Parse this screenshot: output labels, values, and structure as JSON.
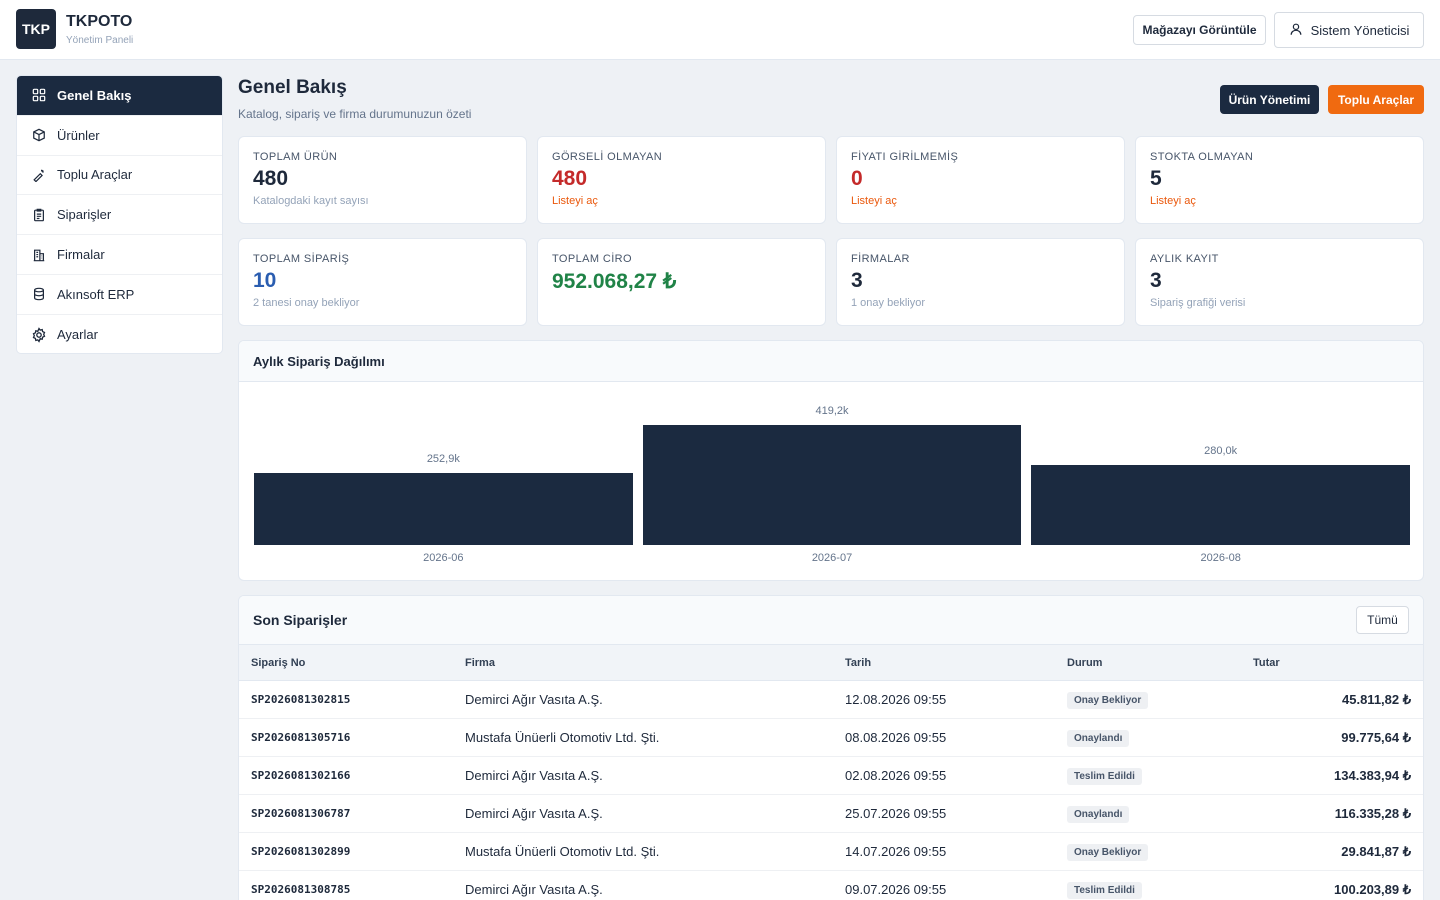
{
  "brand": {
    "logo": "TKP",
    "name": "TKPOTO",
    "subtitle": "Yönetim Paneli"
  },
  "topbar": {
    "store_button": "Mağazayı Görüntüle",
    "user_button": "Sistem Yöneticisi",
    "user_icon": "user-icon"
  },
  "sidebar": {
    "items": [
      {
        "label": "Genel Bakış",
        "icon": "grid-icon",
        "active": true
      },
      {
        "label": "Ürünler",
        "icon": "box-icon"
      },
      {
        "label": "Toplu Araçlar",
        "icon": "wand-icon"
      },
      {
        "label": "Siparişler",
        "icon": "clipboard-icon"
      },
      {
        "label": "Firmalar",
        "icon": "building-icon"
      },
      {
        "label": "Akınsoft ERP",
        "icon": "database-icon"
      },
      {
        "label": "Ayarlar",
        "icon": "gear-icon"
      }
    ]
  },
  "header": {
    "title": "Genel Bakış",
    "subtitle": "Katalog, sipariş ve firma durumunuzun özeti",
    "product_mgmt_button": "Ürün Yönetimi",
    "bulk_tools_button": "Toplu Araçlar"
  },
  "stats": [
    {
      "label": "TOPLAM ÜRÜN",
      "value": "480",
      "note": "Katalogdaki kayıt sayısı"
    },
    {
      "label": "GÖRSELİ OLMAYAN",
      "value": "480",
      "note": "Listeyi aç"
    },
    {
      "label": "FİYATI GİRİLMEMİŞ",
      "value": "0",
      "note": "Listeyi aç"
    },
    {
      "label": "STOKTA OLMAYAN",
      "value": "5",
      "note": "Listeyi aç"
    },
    {
      "label": "TOPLAM SİPARİŞ",
      "value": "10",
      "note": "2 tanesi onay bekliyor"
    },
    {
      "label": "TOPLAM CİRO",
      "value": "952.068,27 ₺",
      "note": ""
    },
    {
      "label": "FİRMALAR",
      "value": "3",
      "note": "1 onay bekliyor"
    },
    {
      "label": "AYLIK KAYIT",
      "value": "3",
      "note": "Sipariş grafiği verisi"
    }
  ],
  "colors": {
    "navy": "#1b2a40",
    "orange": "#f06a10",
    "red": "#c42a2a",
    "blue": "#2a5db0",
    "green": "#208347"
  },
  "chart": {
    "title": "Aylık Sipariş Dağılımı"
  },
  "chart_data": {
    "type": "bar",
    "categories": [
      "2026-06",
      "2026-07",
      "2026-08"
    ],
    "values": [
      252.9,
      419.2,
      280.0
    ],
    "value_labels": [
      "252,9k",
      "419,2k",
      "280,0k"
    ],
    "ylim": [
      0,
      419.2
    ]
  },
  "orders": {
    "title": "Son Siparişler",
    "all_button": "Tümü",
    "columns": [
      "Sipariş No",
      "Firma",
      "Tarih",
      "Durum",
      "Tutar"
    ],
    "rows": [
      {
        "no": "SP2026081302815",
        "firm": "Demirci Ağır Vasıta A.Ş.",
        "date": "12.08.2026 09:55",
        "status": "Onay Bekliyor",
        "amount": "45.811,82 ₺"
      },
      {
        "no": "SP2026081305716",
        "firm": "Mustafa Ünüerli Otomotiv Ltd. Şti.",
        "date": "08.08.2026 09:55",
        "status": "Onaylandı",
        "amount": "99.775,64 ₺"
      },
      {
        "no": "SP2026081302166",
        "firm": "Demirci Ağır Vasıta A.Ş.",
        "date": "02.08.2026 09:55",
        "status": "Teslim Edildi",
        "amount": "134.383,94 ₺"
      },
      {
        "no": "SP2026081306787",
        "firm": "Demirci Ağır Vasıta A.Ş.",
        "date": "25.07.2026 09:55",
        "status": "Onaylandı",
        "amount": "116.335,28 ₺"
      },
      {
        "no": "SP2026081302899",
        "firm": "Mustafa Ünüerli Otomotiv Ltd. Şti.",
        "date": "14.07.2026 09:55",
        "status": "Onay Bekliyor",
        "amount": "29.841,87 ₺"
      },
      {
        "no": "SP2026081308785",
        "firm": "Demirci Ağır Vasıta A.Ş.",
        "date": "09.07.2026 09:55",
        "status": "Teslim Edildi",
        "amount": "100.203,89 ₺"
      }
    ]
  }
}
